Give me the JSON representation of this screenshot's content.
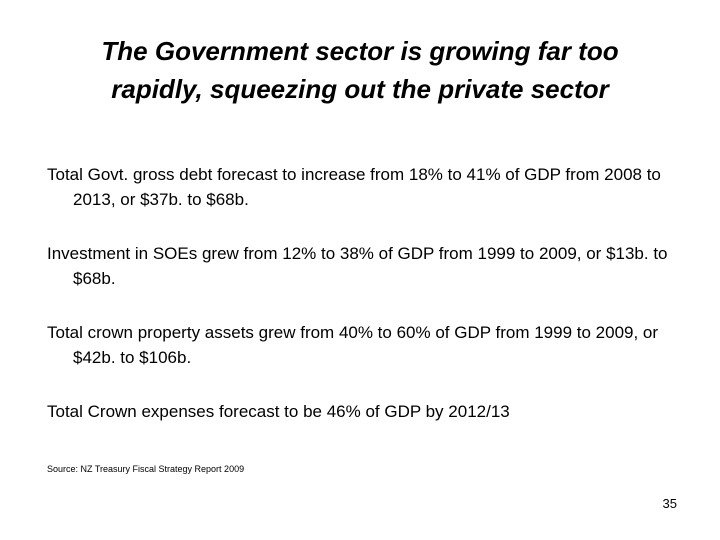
{
  "slide": {
    "title_lines": [
      "The Government sector is growing far too",
      "rapidly, squeezing out the private sector"
    ],
    "bullets": [
      "Total Govt. gross debt forecast to increase from 18% to 41% of GDP from 2008 to 2013, or $37b. to $68b.",
      "Investment in SOEs grew from 12% to 38% of GDP from 1999 to 2009, or $13b. to $68b.",
      "Total crown property assets grew from 40% to 60% of GDP from 1999 to 2009, or $42b. to $106b.",
      "Total Crown expenses forecast to be 46% of GDP by 2012/13"
    ],
    "source": "Source: NZ Treasury Fiscal Strategy Report 2009",
    "page_number": "35"
  }
}
